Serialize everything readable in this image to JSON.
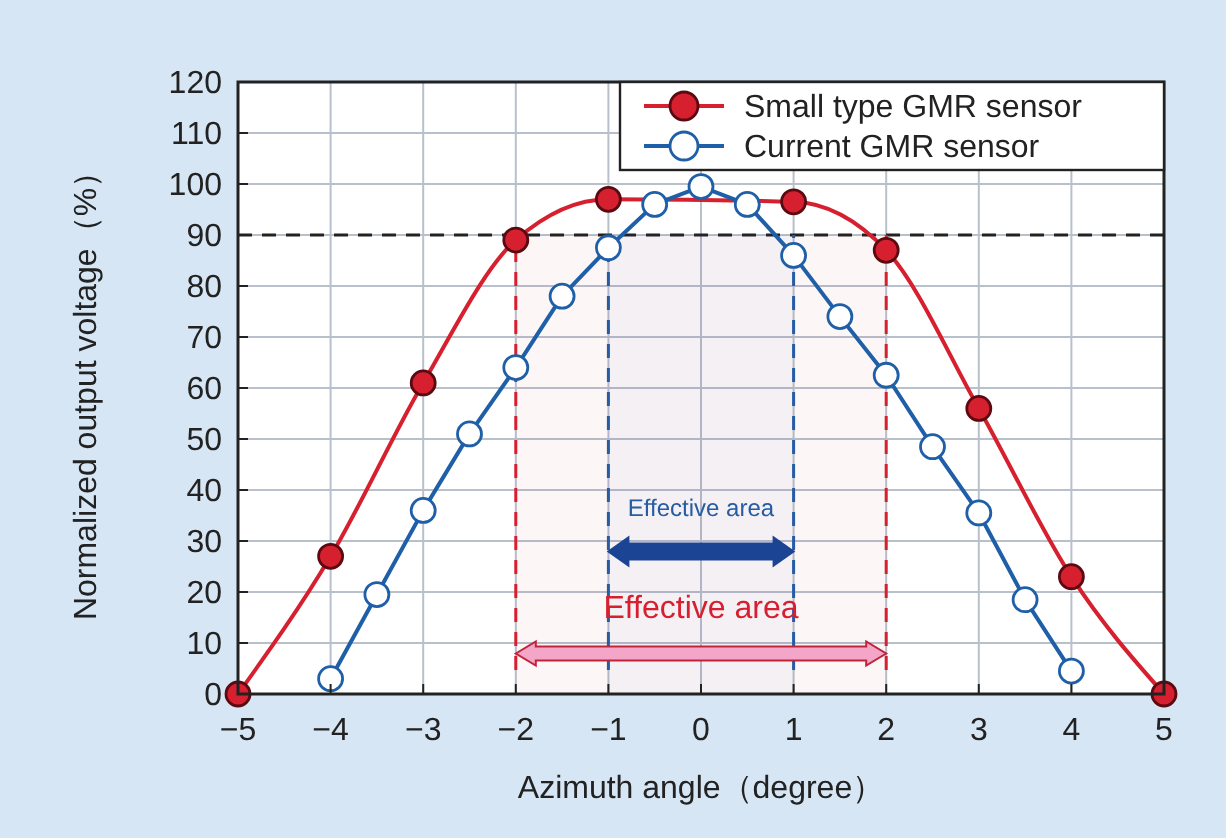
{
  "chart_data": {
    "type": "line",
    "xlabel": "Azimuth angle（degree）",
    "ylabel": "Normalized output voltage（%）",
    "xlim": [
      -5,
      5
    ],
    "ylim": [
      0,
      120
    ],
    "xticks": [
      {
        "value": -5,
        "label": "−5"
      },
      {
        "value": -4,
        "label": "−4"
      },
      {
        "value": -3,
        "label": "−3"
      },
      {
        "value": -2,
        "label": "−2"
      },
      {
        "value": -1,
        "label": "−1"
      },
      0,
      1,
      2,
      3,
      4,
      5
    ],
    "yticks": [
      0,
      10,
      20,
      30,
      40,
      50,
      60,
      70,
      80,
      90,
      100,
      110,
      120
    ],
    "grid": true,
    "legend": "top right",
    "marker": "circle",
    "series": [
      {
        "name": "Small type GMR sensor",
        "color": "#d7202f",
        "x": [
          -5,
          -4,
          -3,
          -2,
          -1,
          1,
          2,
          3,
          4,
          5
        ],
        "values": [
          0,
          27,
          61,
          89,
          97,
          96.5,
          87,
          56,
          23,
          0
        ]
      },
      {
        "name": "Current GMR sensor",
        "color": "#1f5fa8",
        "x": [
          -4,
          -3.5,
          -3,
          -2.5,
          -2,
          -1.5,
          -1,
          -0.5,
          0,
          0.5,
          1,
          1.5,
          2,
          2.5,
          3,
          3.5,
          4
        ],
        "values": [
          3,
          19.5,
          36,
          51,
          64,
          78,
          87.5,
          96,
          99.5,
          96,
          86,
          74,
          62.5,
          48.5,
          35.5,
          18.5,
          4.5
        ]
      }
    ],
    "ref_lines": [
      {
        "axis": "y",
        "value": 90,
        "color": "#222222",
        "line_style": "dashed"
      }
    ],
    "bands": [
      {
        "axis": "x",
        "from": -1,
        "to": 1,
        "label": "Effective area",
        "color": "#1f5fa8"
      },
      {
        "axis": "x",
        "from": -2,
        "to": 2,
        "label": "Effective area",
        "color": "#d7202f"
      }
    ]
  }
}
